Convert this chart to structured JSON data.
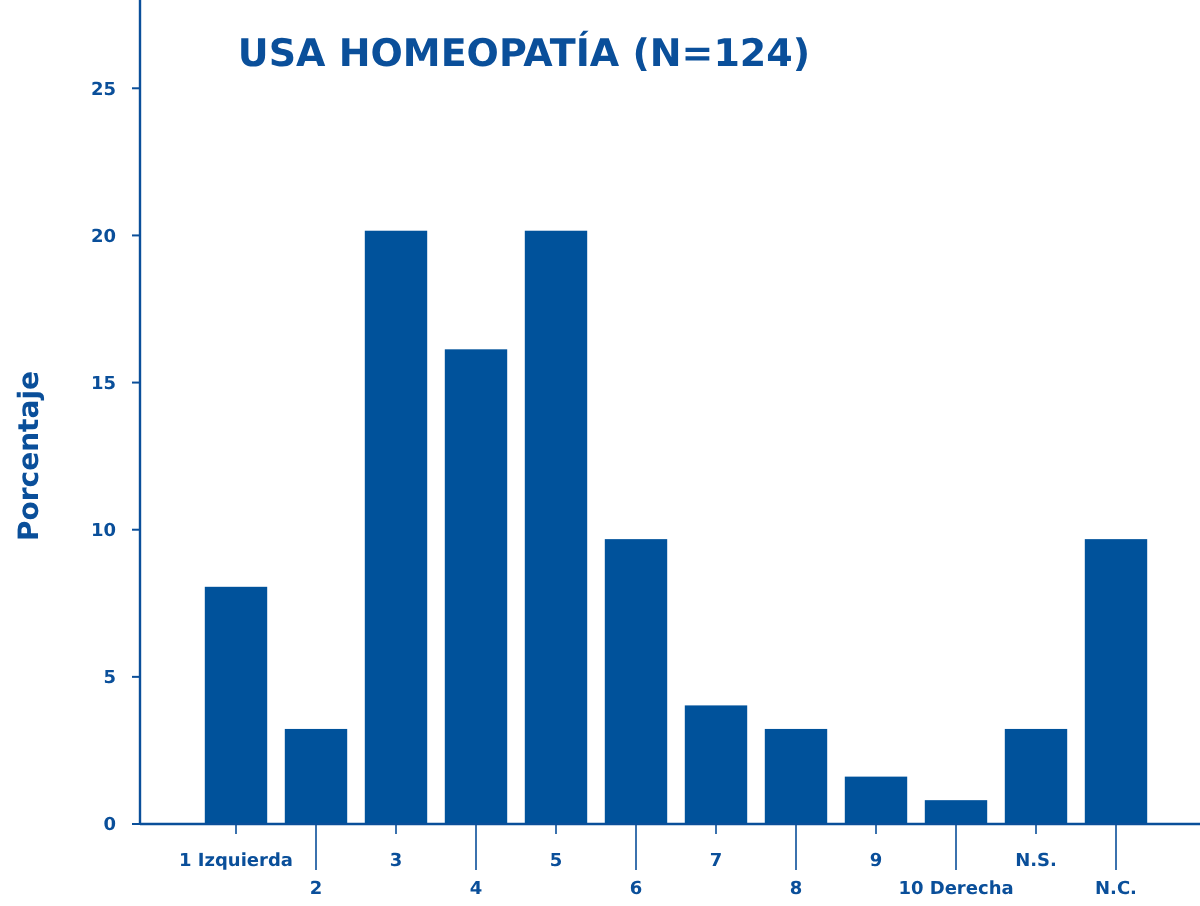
{
  "chart_data": {
    "type": "bar",
    "title": "USA HOMEOPATÍA (N=124)",
    "ylabel": "Porcentaje",
    "categories": [
      "1 Izquierda",
      "2",
      "3",
      "4",
      "5",
      "6",
      "7",
      "8",
      "9",
      "10 Derecha",
      "N.S.",
      "N.C."
    ],
    "values": [
      8.06,
      3.23,
      20.16,
      16.13,
      20.16,
      9.68,
      4.03,
      3.23,
      1.61,
      0.81,
      3.23,
      9.68
    ],
    "color": "#00529b",
    "ylim": [
      0,
      28
    ],
    "yticks": [
      0,
      5,
      10,
      15,
      20,
      25
    ],
    "grid": false
  }
}
